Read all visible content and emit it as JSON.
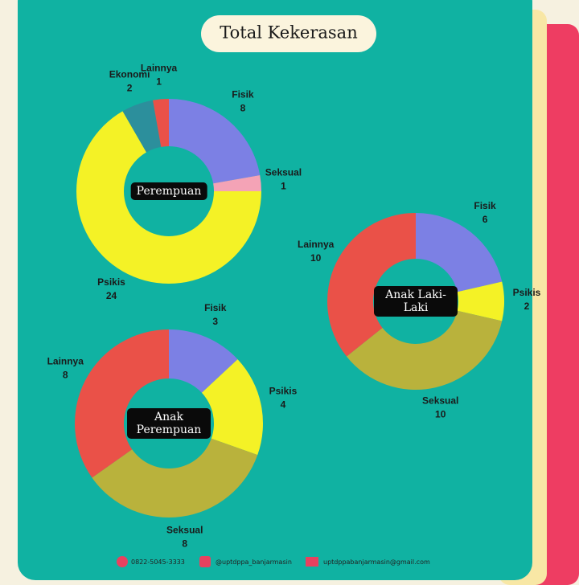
{
  "title": "Total Kekerasan",
  "chart_data": [
    {
      "type": "pie",
      "title": "Perempuan",
      "categories": [
        "Fisik",
        "Seksual",
        "Psikis",
        "Ekonomi",
        "Lainnya"
      ],
      "values": [
        8,
        1,
        24,
        2,
        1
      ],
      "colors": [
        "#7c80e4",
        "#f4a3b6",
        "#f4f226",
        "#2c8f9c",
        "#ea5148"
      ]
    },
    {
      "type": "pie",
      "title": "Anak Laki-Laki",
      "categories": [
        "Fisik",
        "Psikis",
        "Seksual",
        "Lainnya"
      ],
      "values": [
        6,
        2,
        10,
        10
      ],
      "colors": [
        "#7c80e4",
        "#f4f226",
        "#b9b23c",
        "#ea5148"
      ]
    },
    {
      "type": "pie",
      "title": "Anak Perempuan",
      "categories": [
        "Fisik",
        "Psikis",
        "Seksual",
        "Lainnya"
      ],
      "values": [
        3,
        4,
        8,
        8
      ],
      "colors": [
        "#7c80e4",
        "#f4f226",
        "#b9b23c",
        "#ea5148"
      ]
    }
  ],
  "footer": {
    "phone": "0822-5045-3333",
    "instagram": "@uptdppa_banjarmasin",
    "email": "uptdppabanjarmasin@gmail.com"
  }
}
